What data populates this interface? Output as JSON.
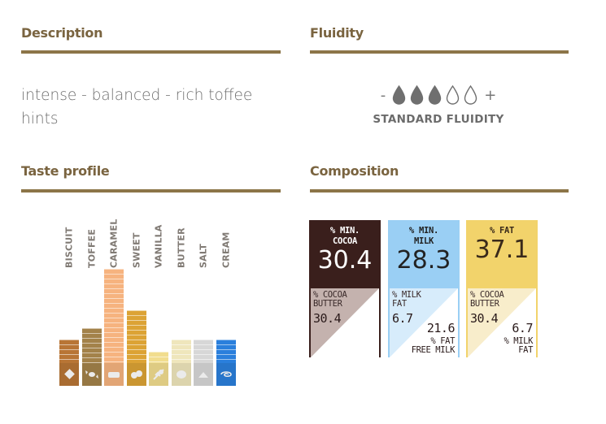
{
  "description": {
    "title": "Description",
    "text": "intense - balanced - rich toffee hints"
  },
  "fluidity": {
    "title": "Fluidity",
    "minus": "-",
    "plus": "+",
    "level": 3,
    "max": 5,
    "label": "STANDARD FLUIDITY"
  },
  "taste_profile": {
    "title": "Taste profile",
    "items": [
      {
        "label": "BISCUIT",
        "value": 2,
        "color": "#b87535",
        "icon": "biscuit-icon"
      },
      {
        "label": "TOFFEE",
        "value": 3,
        "color": "#a3824a",
        "icon": "toffee-candy-icon"
      },
      {
        "label": "CARAMEL",
        "value": 8,
        "color": "#f6b37f",
        "icon": "caramel-icon"
      },
      {
        "label": "SWEET",
        "value": 4.5,
        "color": "#dca335",
        "icon": "sugar-cubes-icon"
      },
      {
        "label": "VANILLA",
        "value": 1,
        "color": "#f1dd8e",
        "icon": "vanilla-flower-icon"
      },
      {
        "label": "BUTTER",
        "value": 2,
        "color": "#efe6bc",
        "icon": "butter-icon"
      },
      {
        "label": "SALT",
        "value": 2,
        "color": "#d7d7d7",
        "icon": "salt-icon"
      },
      {
        "label": "CREAM",
        "value": 2,
        "color": "#2a7fdc",
        "icon": "cream-swirl-icon"
      }
    ]
  },
  "composition": {
    "title": "Composition",
    "cards": [
      {
        "top_label_1": "% MIN.",
        "top_label_2": "COCOA",
        "top_value": "30.4",
        "sub_label_1": "% COCOA",
        "sub_label_2": "BUTTER",
        "sub_value": "30.4",
        "br_value": "",
        "br_label_1": "",
        "br_label_2": "",
        "top_bg": "#3a1f1c",
        "top_fg": "#ffffff",
        "bottom_bg": "#c4b2ae",
        "border": "#3a1f1c"
      },
      {
        "top_label_1": "% MIN.",
        "top_label_2": "MILK",
        "top_value": "28.3",
        "sub_label_1": "% MILK",
        "sub_label_2": "FAT",
        "sub_value": "6.7",
        "br_value": "21.6",
        "br_label_1": "% FAT",
        "br_label_2": "FREE MILK",
        "top_bg": "#9acff4",
        "top_fg": "#222222",
        "bottom_bg": "#d7ecfb",
        "border": "#9acff4"
      },
      {
        "top_label_1": "% FAT",
        "top_label_2": "",
        "top_value": "37.1",
        "sub_label_1": "% COCOA",
        "sub_label_2": "BUTTER",
        "sub_value": "30.4",
        "br_value": "6.7",
        "br_label_1": "% MILK",
        "br_label_2": "FAT",
        "top_bg": "#f2d36b",
        "top_fg": "#3a2a1a",
        "bottom_bg": "#f8edcb",
        "border": "#f2d36b"
      }
    ]
  }
}
